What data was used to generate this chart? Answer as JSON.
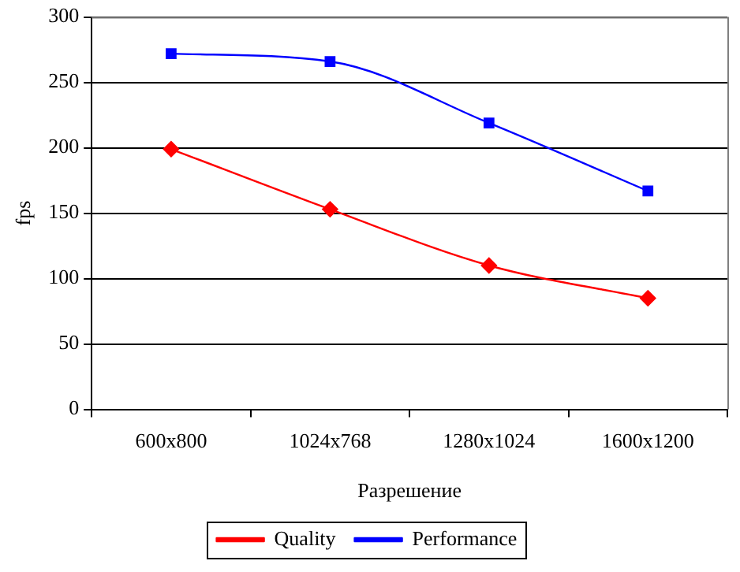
{
  "chart_data": {
    "type": "line",
    "xlabel": "Разрешение",
    "ylabel": "fps",
    "categories": [
      "600x800",
      "1024x768",
      "1280x1024",
      "1600x1200"
    ],
    "series": [
      {
        "name": "Quality",
        "color": "#ff0000",
        "marker": "diamond",
        "values": [
          199,
          153,
          110,
          85
        ]
      },
      {
        "name": "Performance",
        "color": "#0000ff",
        "marker": "square",
        "values": [
          272,
          266,
          219,
          167
        ]
      }
    ],
    "ylim": [
      0,
      300
    ],
    "yticks": [
      0,
      50,
      100,
      150,
      200,
      250,
      300
    ],
    "grid": "y",
    "legend": "bottom",
    "line_style": "solid"
  }
}
